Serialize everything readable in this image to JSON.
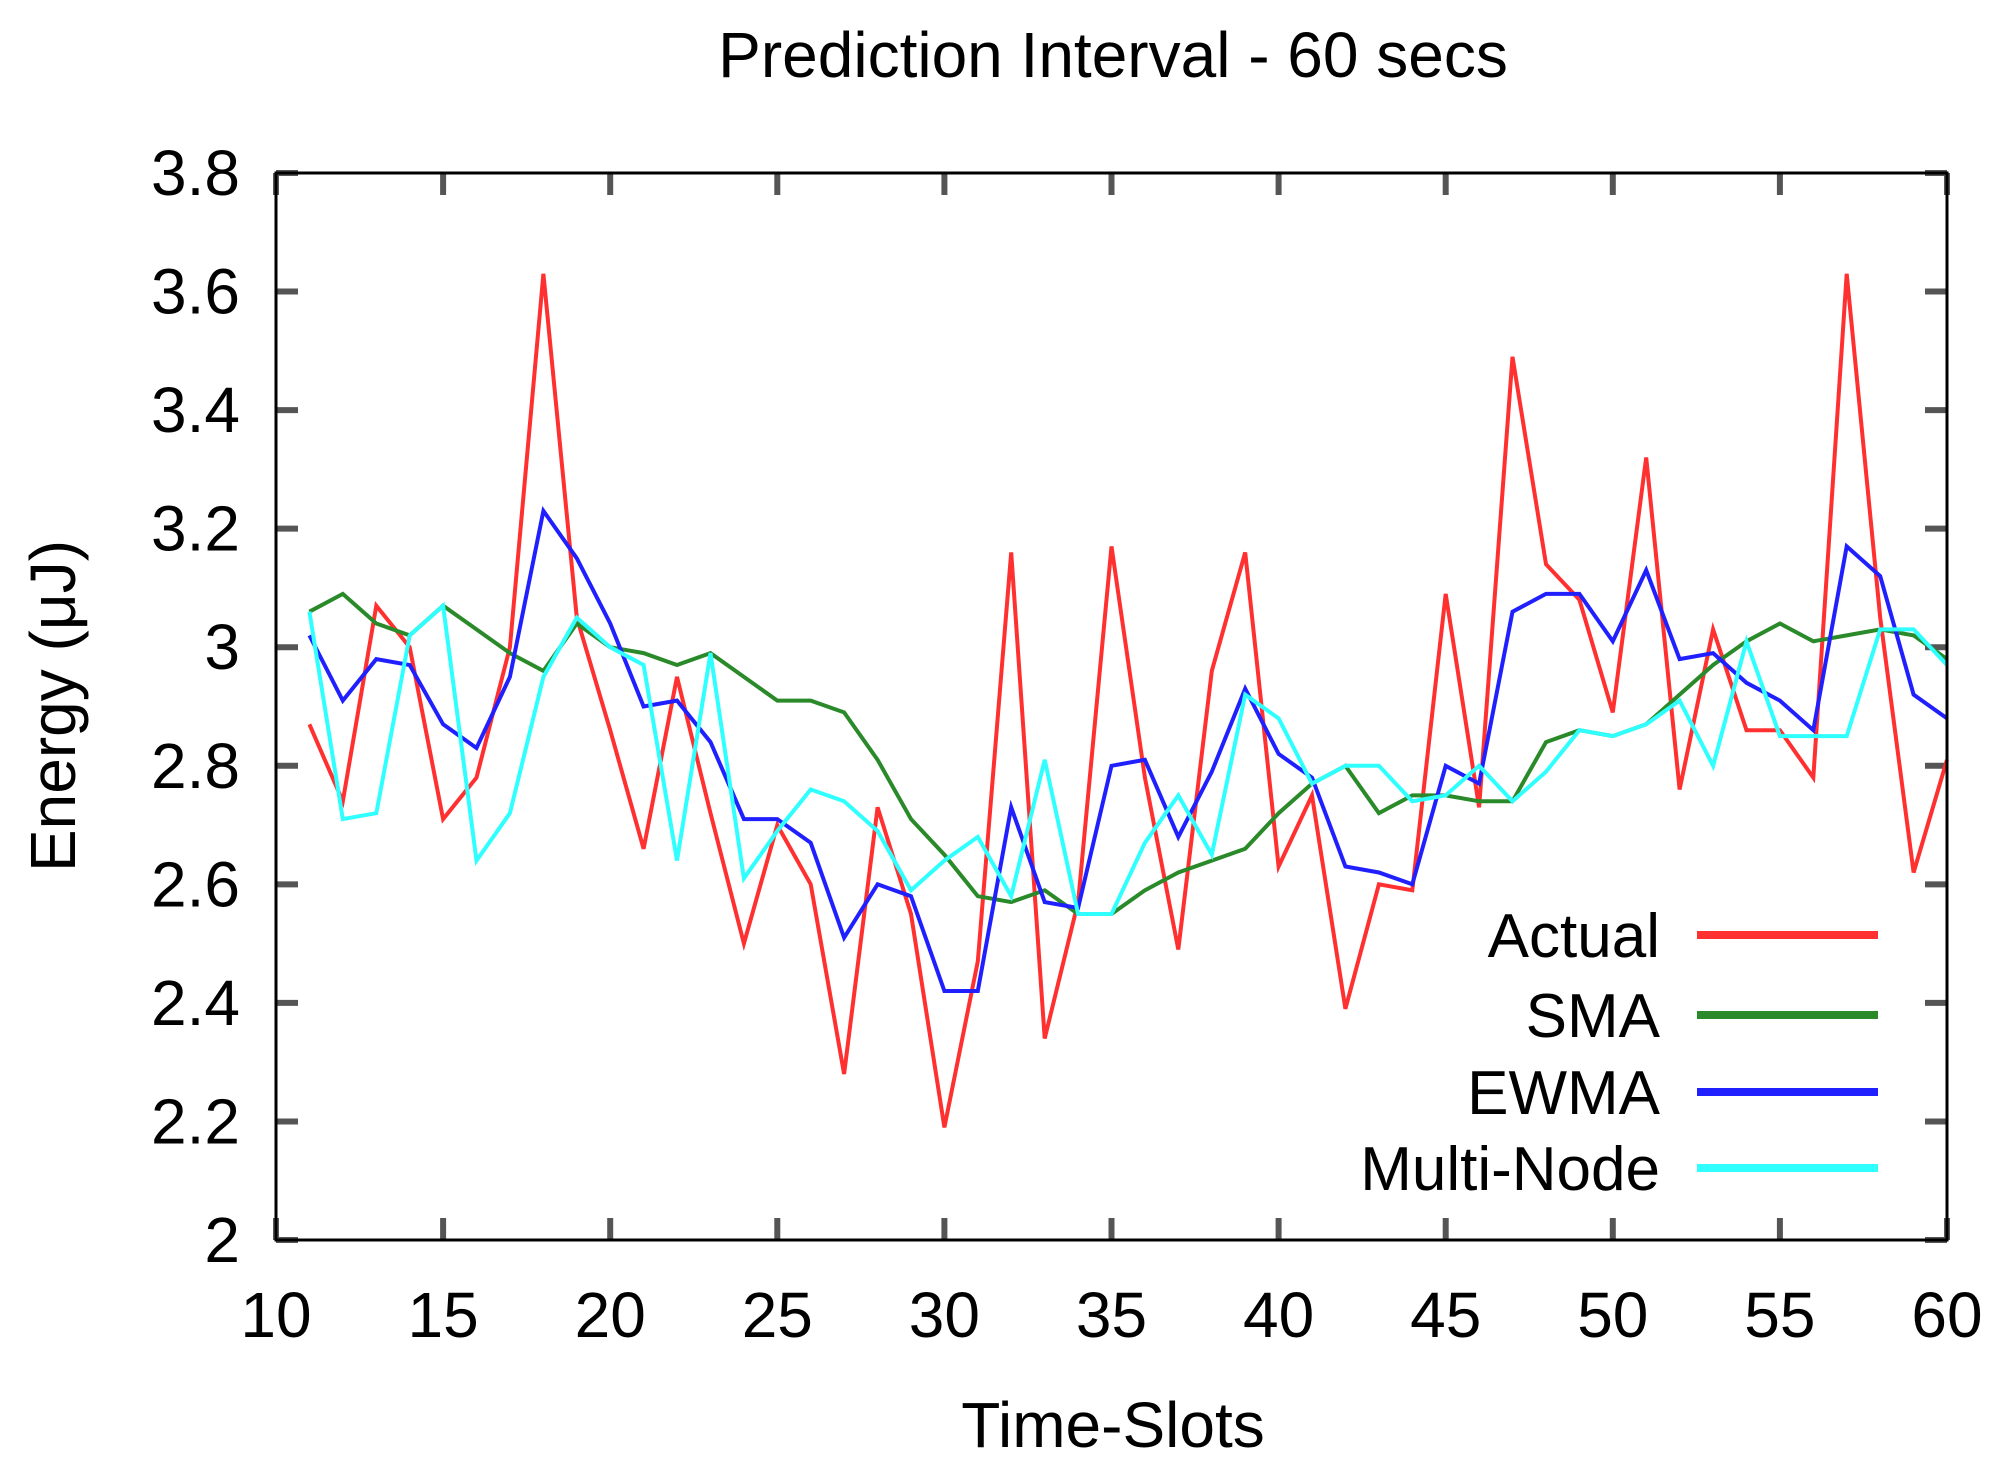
{
  "chart_data": {
    "type": "line",
    "title": "Prediction Interval - 60 secs",
    "xlabel": "Time-Slots",
    "ylabel": "Energy (μJ)",
    "xlim": [
      10,
      60
    ],
    "ylim": [
      2,
      3.8
    ],
    "x_ticks": [
      10,
      15,
      20,
      25,
      30,
      35,
      40,
      45,
      50,
      55,
      60
    ],
    "y_ticks": [
      2,
      2.2,
      2.4,
      2.6,
      2.8,
      3,
      3.2,
      3.4,
      3.6,
      3.8
    ],
    "x_tick_labels": [
      "10",
      "15",
      "20",
      "25",
      "30",
      "35",
      "40",
      "45",
      "50",
      "55",
      "60"
    ],
    "y_tick_labels": [
      "2",
      "2.2",
      "2.4",
      "2.6",
      "2.8",
      "3",
      "3.2",
      "3.4",
      "3.6",
      "3.8"
    ],
    "grid": false,
    "legend_position": "bottom-right",
    "x": [
      11,
      12,
      13,
      14,
      15,
      16,
      17,
      18,
      19,
      20,
      21,
      22,
      23,
      24,
      25,
      26,
      27,
      28,
      29,
      30,
      31,
      32,
      33,
      34,
      35,
      36,
      37,
      38,
      39,
      40,
      41,
      42,
      43,
      44,
      45,
      46,
      47,
      48,
      49,
      50,
      51,
      52,
      53,
      54,
      55,
      56,
      57,
      58,
      59,
      60
    ],
    "series": [
      {
        "name": "Actual",
        "color": "#ff3030",
        "values": [
          2.87,
          2.74,
          3.07,
          3.0,
          2.71,
          2.78,
          3.0,
          3.63,
          3.05,
          2.86,
          2.66,
          2.95,
          2.72,
          2.5,
          2.7,
          2.6,
          2.28,
          2.73,
          2.55,
          2.19,
          2.47,
          3.16,
          2.34,
          2.57,
          3.17,
          2.78,
          2.49,
          2.96,
          3.16,
          2.63,
          2.75,
          2.39,
          2.6,
          2.59,
          3.09,
          2.73,
          3.49,
          3.14,
          3.08,
          2.89,
          3.32,
          2.76,
          3.03,
          2.86,
          2.86,
          2.78,
          3.63,
          3.05,
          2.62,
          2.81
        ]
      },
      {
        "name": "SMA",
        "color": "#2a8a2a",
        "values": [
          3.06,
          3.09,
          3.04,
          3.02,
          3.07,
          3.03,
          2.99,
          2.96,
          3.04,
          3.0,
          2.99,
          2.97,
          2.99,
          2.95,
          2.91,
          2.91,
          2.89,
          2.81,
          2.71,
          2.65,
          2.58,
          2.57,
          2.59,
          2.55,
          2.55,
          2.59,
          2.62,
          2.64,
          2.66,
          2.72,
          2.77,
          2.8,
          2.72,
          2.75,
          2.75,
          2.74,
          2.74,
          2.84,
          2.86,
          2.85,
          2.87,
          2.92,
          2.97,
          3.01,
          3.04,
          3.01,
          3.02,
          3.03,
          3.02,
          2.98
        ]
      },
      {
        "name": "EWMA",
        "color": "#2020ff",
        "values": [
          3.02,
          2.91,
          2.98,
          2.97,
          2.87,
          2.83,
          2.95,
          3.23,
          3.15,
          3.04,
          2.9,
          2.91,
          2.84,
          2.71,
          2.71,
          2.67,
          2.51,
          2.6,
          2.58,
          2.42,
          2.42,
          2.73,
          2.57,
          2.56,
          2.8,
          2.81,
          2.68,
          2.79,
          2.93,
          2.82,
          2.78,
          2.63,
          2.62,
          2.6,
          2.8,
          2.77,
          3.06,
          3.09,
          3.09,
          3.01,
          3.13,
          2.98,
          2.99,
          2.94,
          2.91,
          2.86,
          3.17,
          3.12,
          2.92,
          2.88
        ]
      },
      {
        "name": "Multi-Node",
        "color": "#30ffff",
        "values": [
          3.06,
          2.71,
          2.72,
          3.02,
          3.07,
          2.64,
          2.72,
          2.95,
          3.05,
          3.0,
          2.97,
          2.64,
          2.99,
          2.61,
          2.69,
          2.76,
          2.74,
          2.69,
          2.59,
          2.64,
          2.68,
          2.58,
          2.81,
          2.55,
          2.55,
          2.67,
          2.75,
          2.65,
          2.92,
          2.88,
          2.77,
          2.8,
          2.8,
          2.74,
          2.75,
          2.8,
          2.74,
          2.79,
          2.86,
          2.85,
          2.87,
          2.91,
          2.8,
          3.01,
          2.85,
          2.85,
          2.85,
          3.03,
          3.03,
          2.97
        ]
      }
    ]
  }
}
